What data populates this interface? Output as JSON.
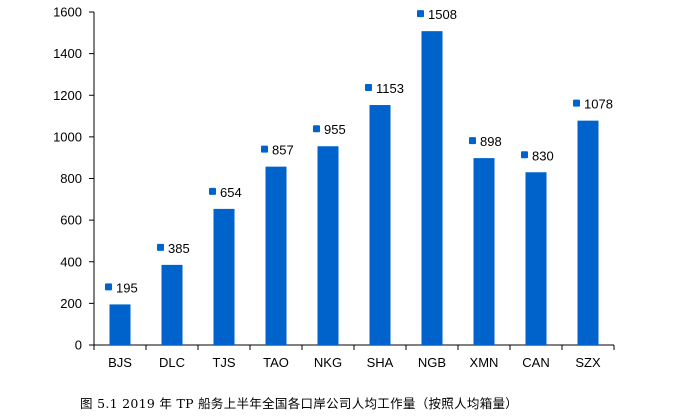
{
  "caption": "图 5.1 2019 年 TP 船务上半年全国各口岸公司人均工作量（按照人均箱量）",
  "colors": {
    "bar": "#0063CC",
    "marker": "#0063CC",
    "axis": "#000000"
  },
  "chart_data": {
    "type": "bar",
    "title": "",
    "xlabel": "",
    "ylabel": "",
    "categories": [
      "BJS",
      "DLC",
      "TJS",
      "TAO",
      "NKG",
      "SHA",
      "NGB",
      "XMN",
      "CAN",
      "SZX"
    ],
    "values": [
      195,
      385,
      654,
      857,
      955,
      1153,
      1508,
      898,
      830,
      1078
    ],
    "data_labels": [
      "195",
      "385",
      "654",
      "857",
      "955",
      "1153",
      "1508",
      "898",
      "830",
      "1078"
    ],
    "ylim": [
      0,
      1600
    ],
    "yticks": [
      0,
      200,
      400,
      600,
      800,
      1000,
      1200,
      1400,
      1600
    ],
    "ytick_labels": [
      "0",
      "200",
      "400",
      "600",
      "800",
      "1000",
      "1200",
      "1400",
      "1600"
    ],
    "grid": false,
    "legend": "none"
  }
}
